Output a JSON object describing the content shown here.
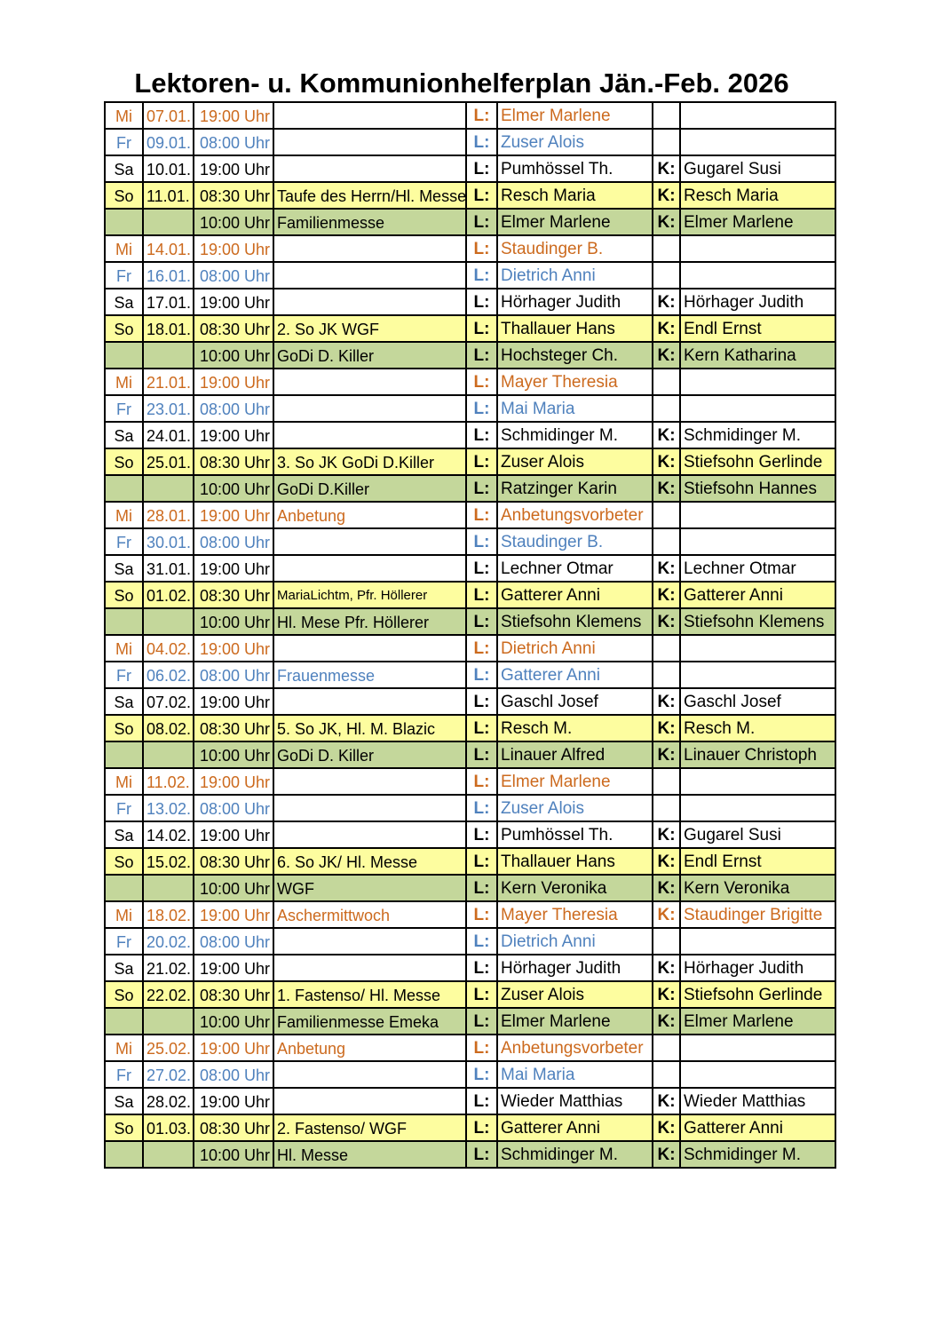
{
  "title": "Lektoren- u. Kommunionhelferplan Jän.-Feb. 2026",
  "colors": {
    "wednesday": "#cc6a1e",
    "friday": "#4f81bd",
    "sunday_first": "#fdfd9f",
    "sunday_second": "#c4d79b"
  },
  "rows": [
    [
      "mi",
      "Mi",
      "07.01.",
      "19:00 Uhr",
      "",
      "L:",
      "Elmer Marlene",
      "",
      ""
    ],
    [
      "fr",
      "Fr",
      "09.01.",
      "08:00 Uhr",
      "",
      "L:",
      "Zuser Alois",
      "",
      ""
    ],
    [
      "sa",
      "Sa",
      "10.01.",
      "19:00 Uhr",
      "",
      "L:",
      "Pumhössel Th.",
      "K:",
      "Gugarel Susi"
    ],
    [
      "so",
      "So",
      "11.01.",
      "08:30 Uhr",
      "Taufe des Herrn/Hl. Messe",
      "L:",
      "Resch Maria",
      "K:",
      "Resch Maria"
    ],
    [
      "so2",
      "",
      "",
      "10:00 Uhr",
      "Familienmesse",
      "L:",
      "Elmer Marlene",
      "K:",
      "Elmer Marlene"
    ],
    [
      "mi",
      "Mi",
      "14.01.",
      "19:00 Uhr",
      "",
      "L:",
      "Staudinger B.",
      "",
      ""
    ],
    [
      "fr",
      "Fr",
      "16.01.",
      "08:00 Uhr",
      "",
      "L:",
      "Dietrich Anni",
      "",
      ""
    ],
    [
      "sa",
      "Sa",
      "17.01.",
      "19:00 Uhr",
      "",
      "L:",
      "Hörhager Judith",
      "K:",
      "Hörhager Judith"
    ],
    [
      "so",
      "So",
      "18.01.",
      "08:30 Uhr",
      "2. So JK WGF",
      "L:",
      "Thallauer Hans",
      "K:",
      "Endl Ernst"
    ],
    [
      "so2",
      "",
      "",
      "10:00 Uhr",
      "GoDi D. Killer",
      "L:",
      "Hochsteger Ch.",
      "K:",
      "Kern Katharina"
    ],
    [
      "mi",
      "Mi",
      "21.01.",
      "19:00 Uhr",
      "",
      "L:",
      "Mayer Theresia",
      "",
      ""
    ],
    [
      "fr",
      "Fr",
      "23.01.",
      "08:00 Uhr",
      "",
      "L:",
      "Mai Maria",
      "",
      ""
    ],
    [
      "sa",
      "Sa",
      "24.01.",
      "19:00 Uhr",
      "",
      "L:",
      "Schmidinger M.",
      "K:",
      "Schmidinger M."
    ],
    [
      "so",
      "So",
      "25.01.",
      "08:30 Uhr",
      "3. So JK GoDi D.Killer",
      "L:",
      "Zuser Alois",
      "K:",
      "Stiefsohn Gerlinde"
    ],
    [
      "so2",
      "",
      "",
      "10:00 Uhr",
      "GoDi D.Killer",
      "L:",
      "Ratzinger Karin",
      "K:",
      "Stiefsohn Hannes"
    ],
    [
      "mi",
      "Mi",
      "28.01.",
      "19:00 Uhr",
      "Anbetung",
      "L:",
      "Anbetungsvorbeter",
      "",
      ""
    ],
    [
      "fr",
      "Fr",
      "30.01.",
      "08:00 Uhr",
      "",
      "L:",
      "Staudinger B.",
      "",
      ""
    ],
    [
      "sa",
      "Sa",
      "31.01.",
      "19:00 Uhr",
      "",
      "L:",
      "Lechner Otmar",
      "K:",
      "Lechner Otmar"
    ],
    [
      "so",
      "So",
      "01.02.",
      "08:30 Uhr",
      "MariaLichtm, Pfr. Höllerer",
      "L:",
      "Gatterer Anni",
      "K:",
      "Gatterer Anni"
    ],
    [
      "so2",
      "",
      "",
      "10:00 Uhr",
      "Hl. Mese Pfr. Höllerer",
      "L:",
      "Stiefsohn Klemens",
      "K:",
      "Stiefsohn Klemens"
    ],
    [
      "mi",
      "Mi",
      "04.02.",
      "19:00 Uhr",
      "",
      "L:",
      "Dietrich Anni",
      "",
      ""
    ],
    [
      "fr",
      "Fr",
      "06.02.",
      "08:00 Uhr",
      "Frauenmesse",
      "L:",
      "Gatterer Anni",
      "",
      ""
    ],
    [
      "sa",
      "Sa",
      "07.02.",
      "19:00 Uhr",
      "",
      "L:",
      "Gaschl Josef",
      "K:",
      "Gaschl Josef"
    ],
    [
      "so",
      "So",
      "08.02.",
      "08:30 Uhr",
      "5. So JK, Hl. M.  Blazic",
      "L:",
      "Resch M.",
      "K:",
      "Resch M."
    ],
    [
      "so2",
      "",
      "",
      "10:00 Uhr",
      "GoDi D. Killer",
      "L:",
      "Linauer Alfred",
      "K:",
      "Linauer Christoph"
    ],
    [
      "mi",
      "Mi",
      "11.02.",
      "19:00 Uhr",
      "",
      "L:",
      "Elmer Marlene",
      "",
      ""
    ],
    [
      "fr",
      "Fr",
      "13.02.",
      "08:00 Uhr",
      "",
      "L:",
      "Zuser Alois",
      "",
      ""
    ],
    [
      "sa",
      "Sa",
      "14.02.",
      "19:00 Uhr",
      "",
      "L:",
      "Pumhössel Th.",
      "K:",
      "Gugarel Susi"
    ],
    [
      "so",
      "So",
      "15.02.",
      "08:30 Uhr",
      "6. So JK/ Hl. Messe",
      "L:",
      "Thallauer Hans",
      "K:",
      "Endl Ernst"
    ],
    [
      "so2",
      "",
      "",
      "10:00 Uhr",
      "WGF",
      "L:",
      "Kern Veronika",
      "K:",
      "Kern Veronika"
    ],
    [
      "mi",
      "Mi",
      "18.02.",
      "19:00 Uhr",
      "Aschermittwoch",
      "L:",
      "Mayer Theresia",
      "K:",
      "Staudinger Brigitte"
    ],
    [
      "fr",
      "Fr",
      "20.02.",
      "08:00 Uhr",
      "",
      "L:",
      "Dietrich Anni",
      "",
      ""
    ],
    [
      "sa",
      "Sa",
      "21.02.",
      "19:00 Uhr",
      "",
      "L:",
      "Hörhager Judith",
      "K:",
      "Hörhager Judith"
    ],
    [
      "so",
      "So",
      "22.02.",
      "08:30 Uhr",
      "1. Fastenso/ Hl. Messe",
      "L:",
      "Zuser Alois",
      "K:",
      "Stiefsohn Gerlinde"
    ],
    [
      "so2",
      "",
      "",
      "10:00 Uhr",
      "Familienmesse Emeka",
      "L:",
      "Elmer Marlene",
      "K:",
      "Elmer Marlene"
    ],
    [
      "mi",
      "Mi",
      "25.02.",
      "19:00 Uhr",
      "Anbetung",
      "L:",
      "Anbetungsvorbeter",
      "",
      ""
    ],
    [
      "fr",
      "Fr",
      "27.02.",
      "08:00 Uhr",
      "",
      "L:",
      "Mai Maria",
      "",
      ""
    ],
    [
      "sa",
      "Sa",
      "28.02.",
      "19:00 Uhr",
      "",
      "L:",
      "Wieder Matthias",
      "K:",
      "Wieder Matthias"
    ],
    [
      "so",
      "So",
      "01.03.",
      "08:30 Uhr",
      "2. Fastenso/ WGF",
      "L:",
      "Gatterer Anni",
      "K:",
      "Gatterer Anni"
    ],
    [
      "so2",
      "",
      "",
      "10:00 Uhr",
      "Hl. Messe",
      "L:",
      "Schmidinger M.",
      "K:",
      "Schmidinger M."
    ]
  ]
}
